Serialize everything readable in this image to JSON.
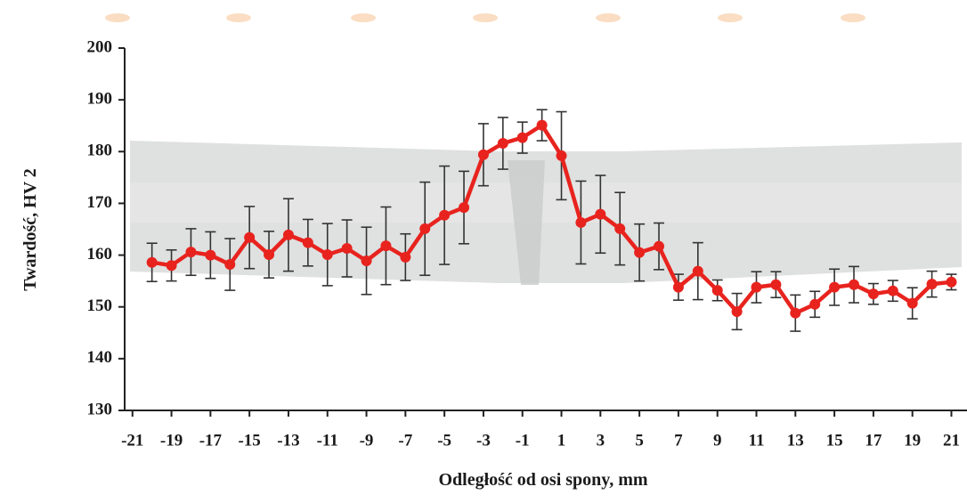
{
  "chart_data": {
    "type": "line",
    "x_label": "Odległość od osi spony, mm",
    "y_label": "Twardość, HV 2",
    "xlim": [
      -21.4,
      21.8
    ],
    "ylim": [
      130,
      200
    ],
    "xticks": [
      -21,
      -19,
      -17,
      -15,
      -13,
      -11,
      -9,
      -7,
      -5,
      -3,
      -1,
      1,
      3,
      5,
      7,
      9,
      11,
      13,
      15,
      17,
      19,
      21
    ],
    "yticks": [
      130,
      140,
      150,
      160,
      170,
      180,
      190,
      200
    ],
    "grid": false,
    "x": [
      -20,
      -19,
      -18,
      -17,
      -16,
      -15,
      -14,
      -13,
      -12,
      -11,
      -10,
      -9,
      -8,
      -7,
      -6,
      -5,
      -4,
      -3,
      -2,
      -1,
      0,
      1,
      2,
      3,
      4,
      5,
      6,
      7,
      8,
      9,
      10,
      11,
      12,
      13,
      14,
      15,
      16,
      17,
      18,
      19,
      20,
      21
    ],
    "series": [
      {
        "color": "#e8231e",
        "errorbar_color": "#333333",
        "values": [
          158.6,
          158.0,
          160.6,
          160.0,
          158.2,
          163.4,
          160.1,
          163.9,
          162.4,
          160.1,
          161.3,
          158.9,
          161.8,
          159.6,
          165.1,
          167.7,
          169.2,
          179.4,
          181.6,
          182.7,
          185.1,
          179.2,
          166.3,
          167.9,
          165.1,
          160.5,
          161.7,
          153.8,
          156.9,
          153.2,
          149.1,
          153.8,
          154.3,
          148.8,
          150.5,
          153.8,
          154.3,
          152.5,
          153.1,
          150.7,
          154.4,
          154.8
        ],
        "errors": [
          3.7,
          3.0,
          4.5,
          4.5,
          5.0,
          6.0,
          4.5,
          7.0,
          4.5,
          6.0,
          5.5,
          6.5,
          7.5,
          4.5,
          9.0,
          9.5,
          7.0,
          6.0,
          5.0,
          3.0,
          3.0,
          8.5,
          8.0,
          7.5,
          7.0,
          5.5,
          4.5,
          2.5,
          5.5,
          2.0,
          3.5,
          3.0,
          2.5,
          3.5,
          2.5,
          3.5,
          3.5,
          2.0,
          2.0,
          3.0,
          2.5,
          1.5
        ]
      }
    ]
  }
}
